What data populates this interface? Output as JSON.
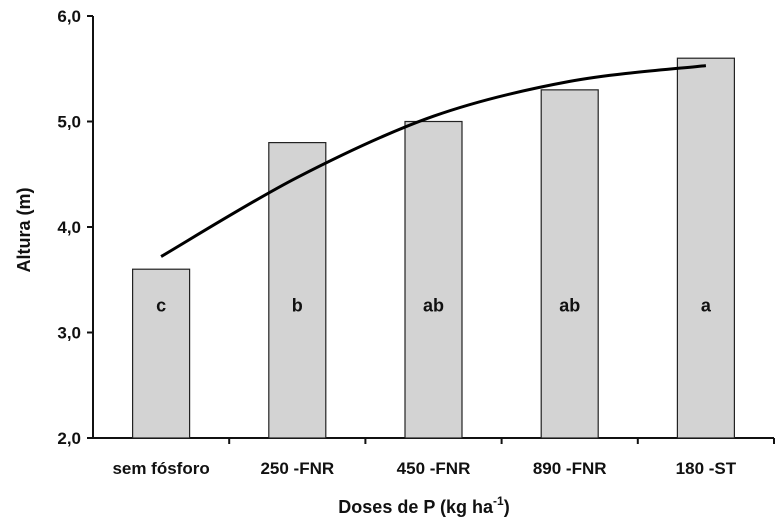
{
  "chart_data": {
    "type": "bar",
    "title": "",
    "xlabel": "Doses de P (kg ha",
    "xlabel_superscript": "-1",
    "xlabel_close": ")",
    "ylabel": "Altura (m)",
    "ylim": [
      2.0,
      6.0
    ],
    "yticks": [
      2.0,
      3.0,
      4.0,
      5.0,
      6.0
    ],
    "ytick_labels": [
      "2,0",
      "3,0",
      "4,0",
      "5,0",
      "6,0"
    ],
    "categories": [
      "sem fósforo",
      "250 -FNR",
      "450 -FNR",
      "890 -FNR",
      "180 -ST"
    ],
    "values": [
      3.6,
      4.8,
      5.0,
      5.3,
      5.6
    ],
    "letters": [
      "c",
      "b",
      "ab",
      "ab",
      "a"
    ],
    "trend_line": {
      "x_categories": [
        "sem fósforo",
        "250 -FNR",
        "450 -FNR",
        "890 -FNR",
        "180 -ST"
      ],
      "y": [
        3.72,
        4.47,
        5.05,
        5.38,
        5.53
      ]
    },
    "grid": false,
    "legend": "none",
    "colors": {
      "bar_fill": "#d3d3d3",
      "bar_stroke": "#222222",
      "line": "#000000",
      "axis": "#111111"
    }
  }
}
